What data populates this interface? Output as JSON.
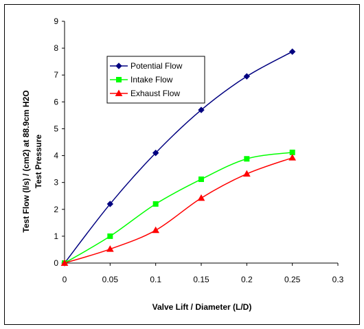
{
  "chart_data": {
    "type": "line",
    "title": "",
    "xlabel": "Valve Lift / Diameter (L/D)",
    "ylabel_lines": [
      "Test Flow (l/s) / (cm2) at 88.9cm H2O",
      "Test Pressure"
    ],
    "x": [
      0,
      0.05,
      0.1,
      0.15,
      0.2,
      0.25
    ],
    "xlim": [
      0,
      0.3
    ],
    "ylim": [
      0,
      9
    ],
    "xticks": [
      0,
      0.05,
      0.1,
      0.15,
      0.2,
      0.25,
      0.3
    ],
    "xtick_labels": [
      "0",
      "0.05",
      "0.1",
      "0.15",
      "0.2",
      "0.25",
      "0.3"
    ],
    "yticks": [
      0,
      1,
      2,
      3,
      4,
      5,
      6,
      7,
      8,
      9
    ],
    "ytick_labels": [
      "0",
      "1",
      "2",
      "3",
      "4",
      "5",
      "6",
      "7",
      "8",
      "9"
    ],
    "grid": false,
    "legend_position": "top-left",
    "smooth": true,
    "series": [
      {
        "name": "Potential Flow",
        "values": [
          0,
          2.2,
          4.1,
          5.7,
          6.95,
          7.87
        ],
        "color": "#000080",
        "marker": "diamond"
      },
      {
        "name": "Intake Flow",
        "values": [
          0,
          1.0,
          2.2,
          3.12,
          3.88,
          4.12
        ],
        "color": "#00ff00",
        "marker": "square"
      },
      {
        "name": "Exhaust Flow",
        "values": [
          0,
          0.52,
          1.22,
          2.42,
          3.32,
          3.92
        ],
        "color": "#ff0000",
        "marker": "triangle"
      }
    ]
  }
}
